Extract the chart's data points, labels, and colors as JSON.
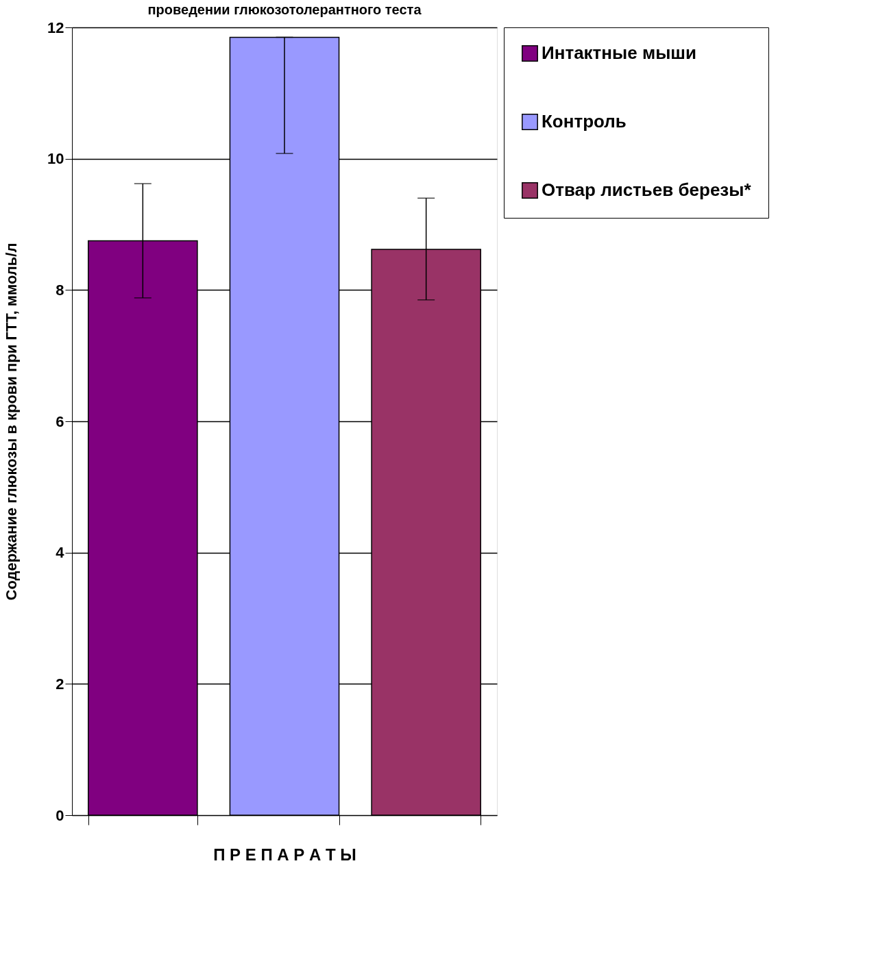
{
  "chart_data": {
    "type": "bar",
    "title": "проведении глюкозотолерантного теста",
    "ylabel": "Содержание глюкозы в крови при ГТТ, ммоль/л",
    "xlabel": "П Р Е П А Р А Т Ы",
    "categories": [
      null,
      null,
      null
    ],
    "series": [
      {
        "name": "Интактные мыши",
        "color": "#800080",
        "values": [
          8.75,
          null,
          null
        ],
        "errors": [
          [
            7.88,
            9.62
          ],
          null,
          null
        ]
      },
      {
        "name": "Контроль",
        "color": "#9999ff",
        "values": [
          null,
          11.85,
          null
        ],
        "errors": [
          null,
          [
            10.08,
            11.85
          ],
          null
        ]
      },
      {
        "name": "Отвар листьев березы*",
        "color": "#993366",
        "values": [
          null,
          null,
          8.62
        ],
        "errors": [
          null,
          null,
          [
            7.85,
            9.4
          ]
        ]
      }
    ],
    "ylim": [
      0,
      12
    ],
    "yticks": [
      0,
      2,
      4,
      6,
      8,
      10,
      12
    ],
    "grid": "y",
    "legend": "right"
  }
}
